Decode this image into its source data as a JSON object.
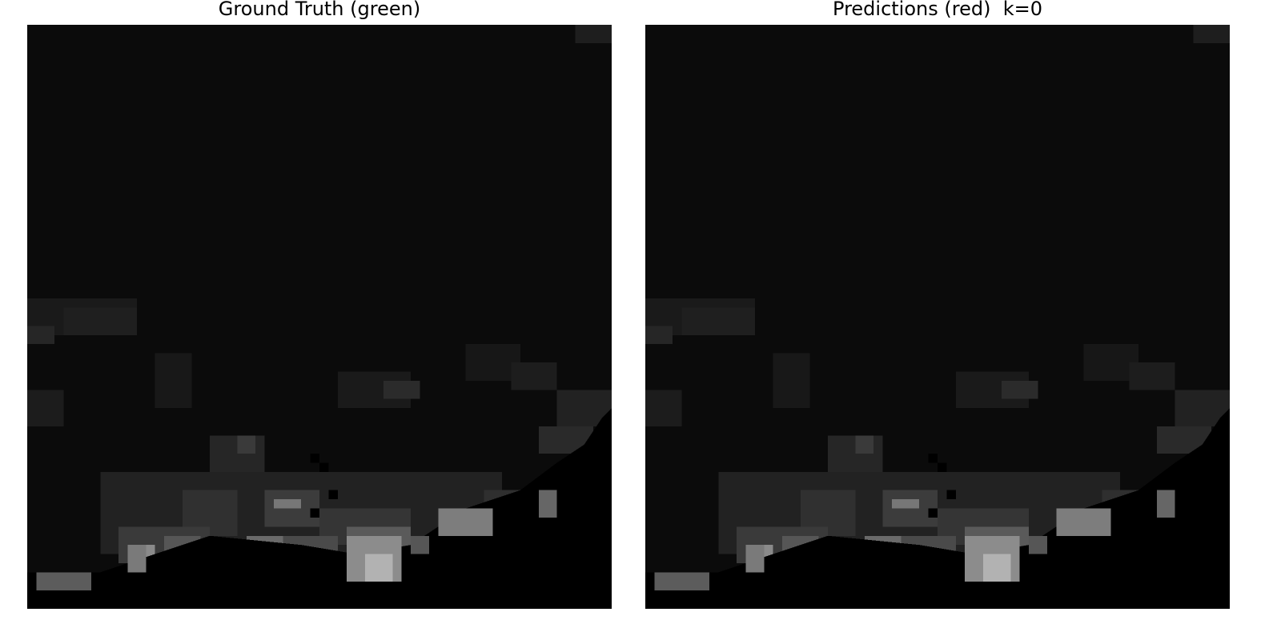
{
  "panels": [
    {
      "title": "Ground Truth (green)",
      "kind": "grayscale-image-patch"
    },
    {
      "title": "Predictions (red)  k=0",
      "kind": "grayscale-image-patch"
    }
  ],
  "colors": {
    "page_background": "#ffffff",
    "image_dark": "#0b0b0b",
    "masked_region": "#000000",
    "title_text": "#000000"
  }
}
